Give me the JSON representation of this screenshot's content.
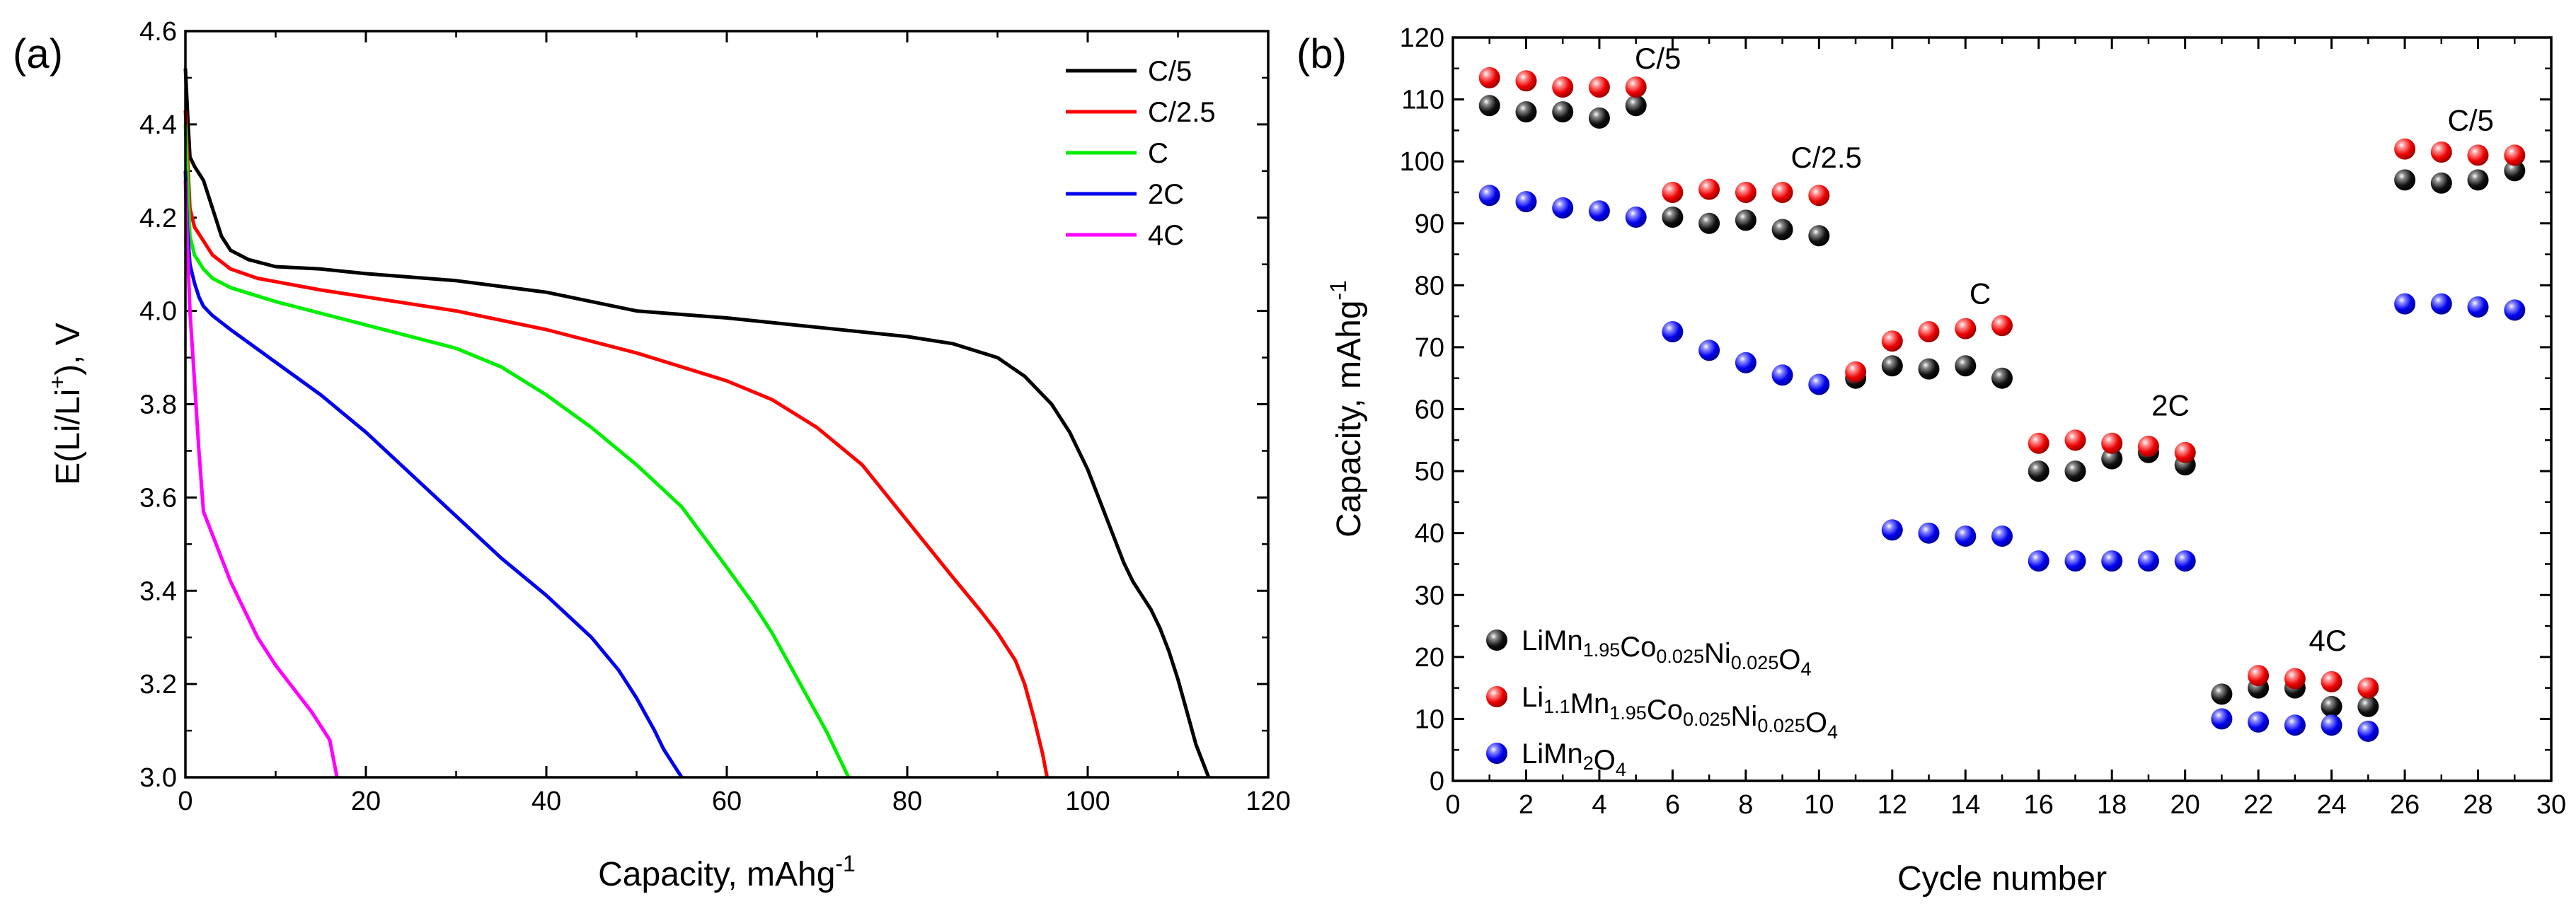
{
  "figure_labels": {
    "a": "(a)",
    "b": "(b)"
  },
  "chart_data": [
    {
      "type": "line",
      "panel": "(a)",
      "xlabel": "Capacity, mAhg",
      "xlabel_sup": "-1",
      "ylabel_pre": "E(Li/Li",
      "ylabel_sup": "+",
      "ylabel_post": "), V",
      "xlim": [
        0,
        120
      ],
      "ylim": [
        3.0,
        4.6
      ],
      "xticks": [
        0,
        20,
        40,
        60,
        80,
        100,
        120
      ],
      "yticks": [
        3.0,
        3.2,
        3.4,
        3.6,
        3.8,
        4.0,
        4.2,
        4.4,
        4.6
      ],
      "grid": false,
      "legend_position": "top-right",
      "series": [
        {
          "name": "C/5",
          "color": "#000000",
          "x": [
            0,
            0.3,
            0.5,
            1,
            2,
            3,
            4,
            5,
            7,
            10,
            15,
            20,
            30,
            40,
            50,
            60,
            70,
            80,
            85,
            90,
            93,
            96,
            98,
            100,
            102,
            104,
            105,
            106,
            107,
            108,
            109,
            110,
            111,
            112,
            113,
            113.4
          ],
          "y": [
            4.52,
            4.4,
            4.33,
            4.31,
            4.28,
            4.22,
            4.16,
            4.13,
            4.11,
            4.095,
            4.09,
            4.08,
            4.065,
            4.04,
            4.0,
            3.985,
            3.965,
            3.945,
            3.93,
            3.9,
            3.86,
            3.8,
            3.74,
            3.66,
            3.56,
            3.46,
            3.42,
            3.39,
            3.36,
            3.32,
            3.27,
            3.21,
            3.14,
            3.07,
            3.02,
            3.0
          ]
        },
        {
          "name": "C/2.5",
          "color": "#ff0000",
          "x": [
            0,
            0.3,
            0.5,
            1,
            2,
            3,
            5,
            8,
            15,
            20,
            30,
            40,
            50,
            60,
            65,
            70,
            75,
            80,
            85,
            88,
            90,
            92,
            93,
            94,
            95,
            95.5
          ],
          "y": [
            4.43,
            4.3,
            4.22,
            4.18,
            4.15,
            4.12,
            4.09,
            4.07,
            4.045,
            4.03,
            4.0,
            3.96,
            3.91,
            3.85,
            3.81,
            3.75,
            3.67,
            3.55,
            3.43,
            3.36,
            3.31,
            3.25,
            3.2,
            3.13,
            3.05,
            3.0
          ]
        },
        {
          "name": "C",
          "color": "#00ee00",
          "x": [
            0,
            0.3,
            0.5,
            1,
            2,
            3,
            5,
            10,
            20,
            30,
            35,
            40,
            45,
            50,
            55,
            60,
            63,
            65,
            67,
            69,
            71,
            72,
            73,
            73.5
          ],
          "y": [
            4.4,
            4.25,
            4.16,
            4.12,
            4.09,
            4.07,
            4.05,
            4.02,
            3.97,
            3.92,
            3.88,
            3.82,
            3.75,
            3.67,
            3.58,
            3.45,
            3.37,
            3.31,
            3.24,
            3.17,
            3.1,
            3.06,
            3.02,
            3.0
          ]
        },
        {
          "name": "2C",
          "color": "#0000ee",
          "x": [
            0,
            0.2,
            0.5,
            1,
            1.5,
            2,
            3,
            5,
            10,
            15,
            20,
            25,
            30,
            35,
            40,
            45,
            48,
            50,
            52,
            53,
            54,
            55
          ],
          "y": [
            4.3,
            4.18,
            4.1,
            4.06,
            4.03,
            4.01,
            3.99,
            3.96,
            3.89,
            3.82,
            3.74,
            3.65,
            3.56,
            3.47,
            3.39,
            3.3,
            3.23,
            3.17,
            3.1,
            3.06,
            3.03,
            3.0
          ]
        },
        {
          "name": "4C",
          "color": "#ff00ff",
          "x": [
            0,
            0.2,
            0.5,
            1,
            1.5,
            2,
            3,
            4,
            5,
            6,
            7,
            8,
            9,
            10,
            12,
            14,
            15,
            16,
            16.8
          ],
          "y": [
            4.28,
            4.15,
            4.0,
            3.85,
            3.7,
            3.57,
            3.52,
            3.47,
            3.42,
            3.38,
            3.34,
            3.3,
            3.27,
            3.24,
            3.19,
            3.14,
            3.11,
            3.08,
            3.0
          ]
        }
      ]
    },
    {
      "type": "scatter",
      "panel": "(b)",
      "xlabel": "Cycle number",
      "ylabel": "Capacity, mAhg",
      "ylabel_sup": "-1",
      "xlim": [
        0,
        30
      ],
      "ylim": [
        0,
        120
      ],
      "xticks": [
        0,
        2,
        4,
        6,
        8,
        10,
        12,
        14,
        16,
        18,
        20,
        22,
        24,
        26,
        28,
        30
      ],
      "yticks": [
        0,
        10,
        20,
        30,
        40,
        50,
        60,
        70,
        80,
        90,
        100,
        110,
        120
      ],
      "grid": false,
      "legend_position": "bottom-left",
      "annotations": [
        {
          "text": "C/5",
          "x": 5.6,
          "y": 115
        },
        {
          "text": "C/2.5",
          "x": 10.2,
          "y": 99
        },
        {
          "text": "C",
          "x": 14.4,
          "y": 77
        },
        {
          "text": "2C",
          "x": 19.6,
          "y": 59
        },
        {
          "text": "4C",
          "x": 23.9,
          "y": 21
        },
        {
          "text": "C/5",
          "x": 27.8,
          "y": 105
        }
      ],
      "series": [
        {
          "name": "LiMn1.95Co0.025Ni0.025O4",
          "color": "#000000",
          "legend_parts": [
            [
              "LiMn",
              ""
            ],
            [
              "1.95",
              "sub"
            ],
            [
              "Co",
              ""
            ],
            [
              "0.025",
              "sub"
            ],
            [
              "Ni",
              ""
            ],
            [
              "0.025",
              "sub"
            ],
            [
              "O",
              ""
            ],
            [
              "4",
              "sub"
            ]
          ],
          "x": [
            1,
            2,
            3,
            4,
            5,
            6,
            7,
            8,
            9,
            10,
            11,
            12,
            13,
            14,
            15,
            16,
            17,
            18,
            19,
            20,
            21,
            22,
            23,
            24,
            25,
            26,
            27,
            28,
            29
          ],
          "y": [
            109,
            108,
            108,
            107,
            109,
            91,
            90,
            90.5,
            89,
            88,
            65,
            67,
            66.5,
            67,
            65,
            50,
            50,
            52,
            53,
            51,
            14,
            15,
            15,
            12,
            12,
            97,
            96.5,
            97,
            98.5
          ]
        },
        {
          "name": "Li1.1Mn1.95Co0.025Ni0.025O4",
          "color": "#ff0000",
          "legend_parts": [
            [
              "Li",
              ""
            ],
            [
              "1.1",
              "sub"
            ],
            [
              "Mn",
              ""
            ],
            [
              "1.95",
              "sub"
            ],
            [
              "Co",
              ""
            ],
            [
              "0.025",
              "sub"
            ],
            [
              "Ni",
              ""
            ],
            [
              "0.025",
              "sub"
            ],
            [
              "O",
              ""
            ],
            [
              "4",
              "sub"
            ]
          ],
          "x": [
            1,
            2,
            3,
            4,
            5,
            6,
            7,
            8,
            9,
            10,
            11,
            12,
            13,
            14,
            15,
            16,
            17,
            18,
            19,
            20,
            22,
            23,
            24,
            25,
            26,
            27,
            28,
            29
          ],
          "y": [
            113.5,
            113,
            112,
            112,
            112,
            95,
            95.5,
            95,
            95,
            94.5,
            66,
            71,
            72.5,
            73,
            73.5,
            54.5,
            55,
            54.5,
            54,
            53,
            17,
            16.5,
            16,
            15,
            102,
            101.5,
            101,
            101
          ]
        },
        {
          "name": "LiMn2O4",
          "color": "#0000ff",
          "legend_parts": [
            [
              "LiMn",
              ""
            ],
            [
              "2",
              "sub"
            ],
            [
              "O",
              ""
            ],
            [
              "4",
              "sub"
            ]
          ],
          "x": [
            1,
            2,
            3,
            4,
            5,
            6,
            7,
            8,
            9,
            10,
            12,
            13,
            14,
            15,
            16,
            17,
            18,
            19,
            20,
            21,
            22,
            23,
            24,
            25,
            26,
            27,
            28,
            29
          ],
          "y": [
            94.5,
            93.5,
            92.5,
            92,
            91,
            72.5,
            69.5,
            67.5,
            65.5,
            64,
            40.5,
            40,
            39.5,
            39.5,
            35.5,
            35.5,
            35.5,
            35.5,
            35.5,
            10,
            9.5,
            9,
            9,
            8,
            77,
            77,
            76.5,
            76
          ]
        }
      ]
    }
  ]
}
